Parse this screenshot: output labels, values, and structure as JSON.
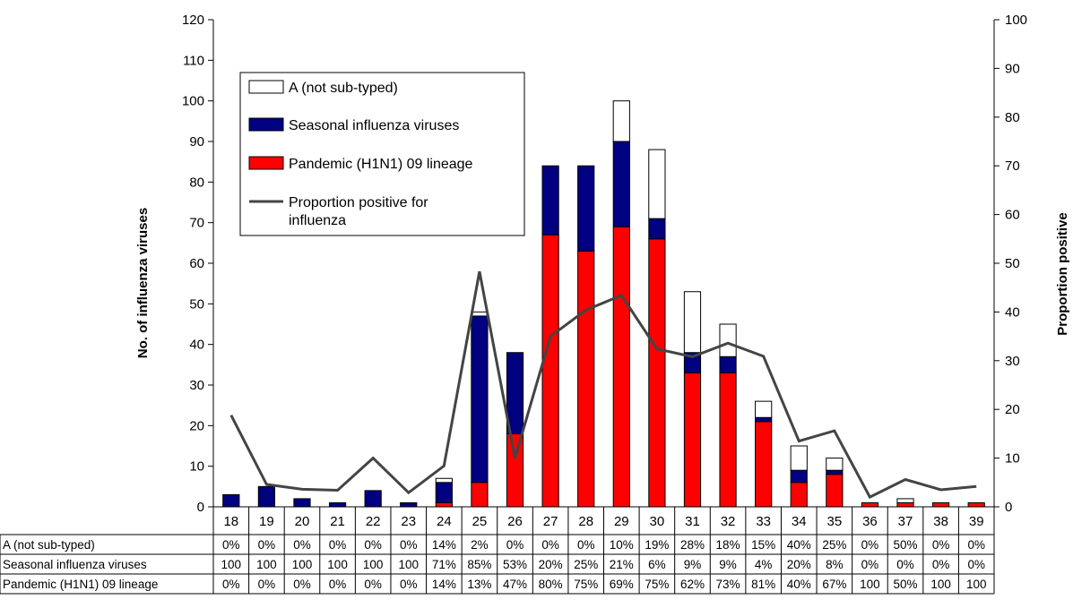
{
  "chart_data": {
    "type": "bar",
    "stacked": true,
    "categories": [
      "18",
      "19",
      "20",
      "21",
      "22",
      "23",
      "24",
      "25",
      "26",
      "27",
      "28",
      "29",
      "30",
      "31",
      "32",
      "33",
      "34",
      "35",
      "36",
      "37",
      "38",
      "39"
    ],
    "series": [
      {
        "name": "Pandemic (H1N1) 09 lineage",
        "kind": "bar",
        "axis": "left",
        "color": "#ff0000",
        "values": [
          0,
          0,
          0,
          0,
          0,
          0,
          1,
          6,
          18,
          67,
          63,
          69,
          66,
          33,
          33,
          21,
          6,
          8,
          1,
          1,
          1,
          1
        ]
      },
      {
        "name": "Seasonal influenza viruses",
        "kind": "bar",
        "axis": "left",
        "color": "#000080",
        "values": [
          3,
          5,
          2,
          1,
          4,
          1,
          5,
          41,
          20,
          17,
          21,
          21,
          5,
          5,
          4,
          1,
          3,
          1,
          0,
          0,
          0,
          0
        ]
      },
      {
        "name": "A (not sub-typed)",
        "kind": "bar",
        "axis": "left",
        "color": "#ffffff",
        "values": [
          0,
          0,
          0,
          0,
          0,
          0,
          1,
          1,
          0,
          0,
          0,
          10,
          17,
          15,
          8,
          4,
          6,
          3,
          0,
          1,
          0,
          0
        ]
      },
      {
        "name": "Proportion positive for influenza",
        "kind": "line",
        "axis": "right",
        "color": "#444444",
        "values": [
          18.8,
          4.6,
          3.6,
          3.4,
          10,
          2.9,
          8.4,
          48.3,
          10,
          35,
          40.4,
          43.4,
          32.4,
          30.8,
          33.6,
          30.9,
          13.5,
          15.6,
          2,
          5.6,
          3.5,
          4.2
        ]
      }
    ],
    "ylabel": "No. of influenza viruses",
    "ylabel_right": "Proportion positive",
    "ylim": [
      0,
      120
    ],
    "ylim_right": [
      0,
      100
    ],
    "yticks": [
      "0",
      "10",
      "20",
      "30",
      "40",
      "50",
      "60",
      "70",
      "80",
      "90",
      "100",
      "110",
      "120"
    ],
    "yticks_right": [
      "0",
      "10",
      "20",
      "30",
      "40",
      "50",
      "60",
      "70",
      "80",
      "90",
      "100"
    ],
    "legend": {
      "placement": "top-left",
      "entries": [
        {
          "label": "A (not sub-typed)",
          "swatch": "box",
          "color": "#ffffff"
        },
        {
          "label": "Seasonal influenza viruses",
          "swatch": "box",
          "color": "#000080"
        },
        {
          "label": "Pandemic (H1N1) 09 lineage",
          "swatch": "box",
          "color": "#ff0000"
        },
        {
          "label": "Proportion positive for influenza",
          "swatch": "line",
          "color": "#444444"
        }
      ]
    },
    "table": {
      "rows": [
        {
          "label": "A (not sub-typed)",
          "cells": [
            "0%",
            "0%",
            "0%",
            "0%",
            "0%",
            "0%",
            "14%",
            "2%",
            "0%",
            "0%",
            "0%",
            "10%",
            "19%",
            "28%",
            "18%",
            "15%",
            "40%",
            "25%",
            "0%",
            "50%",
            "0%",
            "0%"
          ]
        },
        {
          "label": "Seasonal influenza viruses",
          "cells": [
            "100",
            "100",
            "100",
            "100",
            "100",
            "100",
            "71%",
            "85%",
            "53%",
            "20%",
            "25%",
            "21%",
            "6%",
            "9%",
            "9%",
            "4%",
            "20%",
            "8%",
            "0%",
            "0%",
            "0%",
            "0%"
          ]
        },
        {
          "label": "Pandemic (H1N1) 09 lineage",
          "cells": [
            "0%",
            "0%",
            "0%",
            "0%",
            "0%",
            "0%",
            "14%",
            "13%",
            "47%",
            "80%",
            "75%",
            "69%",
            "75%",
            "62%",
            "73%",
            "81%",
            "40%",
            "67%",
            "100",
            "50%",
            "100",
            "100"
          ]
        }
      ]
    },
    "grid": false
  }
}
